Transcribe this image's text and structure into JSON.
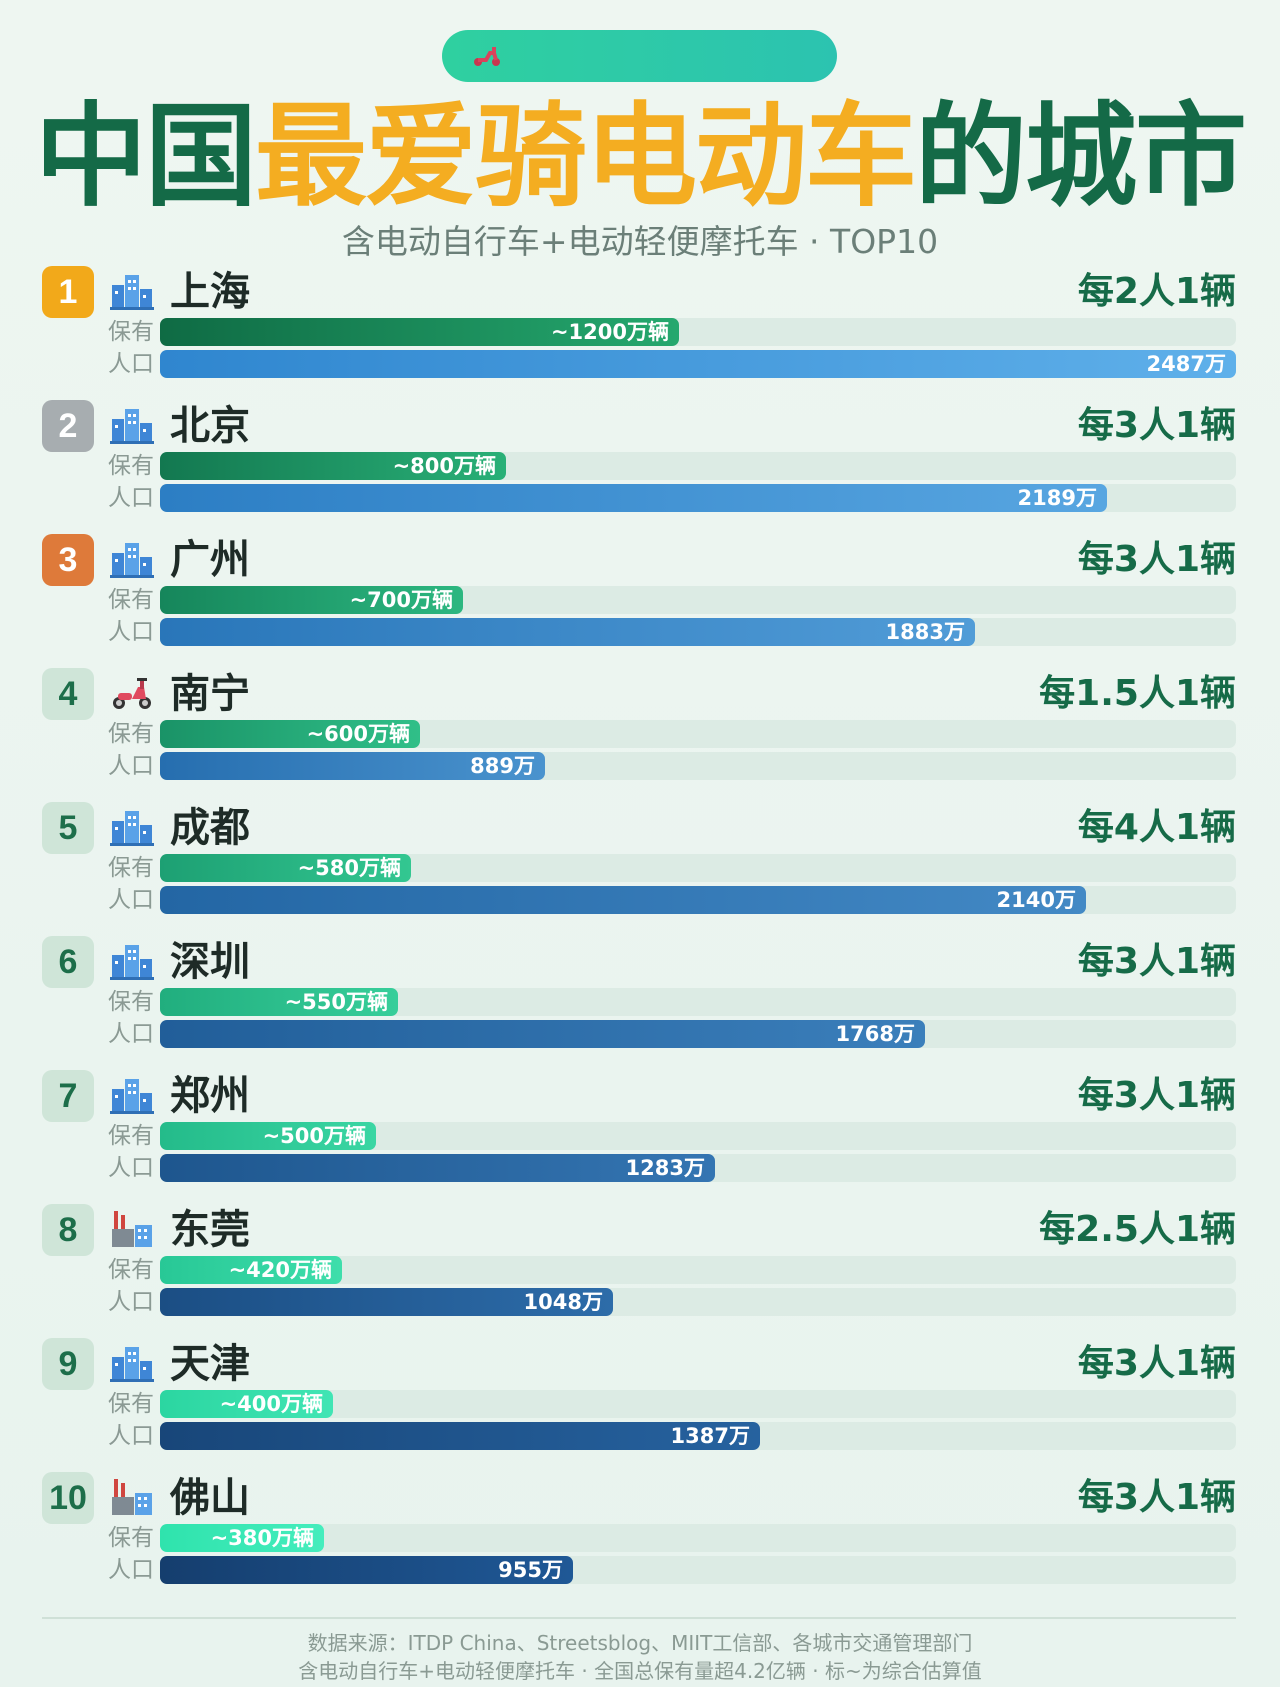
{
  "header": {
    "title_part1": "中国",
    "title_part2": "最爱骑电动车",
    "title_part3": "的城市",
    "subtitle": "含电动自行车+电动轻便摩托车 · TOP10"
  },
  "labels": {
    "own": "保有",
    "pop": "人口"
  },
  "footer": {
    "line1": "数据来源：ITDP China、Streetsblog、MIIT工信部、各城市交通管理部门",
    "line2": "含电动自行车+电动轻便摩托车 · 全国总保有量超4.2亿辆 · 标~为综合估算值"
  },
  "colors": {
    "rank1": "#f2a91a",
    "rank2": "#a7adb0",
    "rank3": "#de7a3a",
    "title_dark": "#146a47",
    "title_gold": "#f4ad21"
  },
  "chart_data": {
    "type": "bar",
    "max_value": 2487,
    "categories": [
      "上海",
      "北京",
      "广州",
      "南宁",
      "成都",
      "深圳",
      "郑州",
      "东莞",
      "天津",
      "佛山"
    ],
    "series": [
      {
        "name": "保有",
        "values": [
          1200,
          800,
          700,
          600,
          580,
          550,
          500,
          420,
          400,
          380
        ]
      },
      {
        "name": "人口",
        "values": [
          2487,
          2189,
          1883,
          889,
          2140,
          1768,
          1283,
          1048,
          1387,
          955
        ]
      }
    ],
    "rows": [
      {
        "rank": "1",
        "city": "上海",
        "icon": "city-buildings-icon",
        "ratio": "每2人1辆",
        "own": 1200,
        "own_label": "~1200万辆",
        "pop": 2487,
        "pop_label": "2487万"
      },
      {
        "rank": "2",
        "city": "北京",
        "icon": "city-buildings-icon",
        "ratio": "每3人1辆",
        "own": 800,
        "own_label": "~800万辆",
        "pop": 2189,
        "pop_label": "2189万"
      },
      {
        "rank": "3",
        "city": "广州",
        "icon": "city-buildings-icon",
        "ratio": "每3人1辆",
        "own": 700,
        "own_label": "~700万辆",
        "pop": 1883,
        "pop_label": "1883万"
      },
      {
        "rank": "4",
        "city": "南宁",
        "icon": "scooter-icon",
        "ratio": "每1.5人1辆",
        "own": 600,
        "own_label": "~600万辆",
        "pop": 889,
        "pop_label": "889万"
      },
      {
        "rank": "5",
        "city": "成都",
        "icon": "city-buildings-icon",
        "ratio": "每4人1辆",
        "own": 580,
        "own_label": "~580万辆",
        "pop": 2140,
        "pop_label": "2140万"
      },
      {
        "rank": "6",
        "city": "深圳",
        "icon": "city-buildings-icon",
        "ratio": "每3人1辆",
        "own": 550,
        "own_label": "~550万辆",
        "pop": 1768,
        "pop_label": "1768万"
      },
      {
        "rank": "7",
        "city": "郑州",
        "icon": "city-buildings-icon",
        "ratio": "每3人1辆",
        "own": 500,
        "own_label": "~500万辆",
        "pop": 1283,
        "pop_label": "1283万"
      },
      {
        "rank": "8",
        "city": "东莞",
        "icon": "factory-icon",
        "ratio": "每2.5人1辆",
        "own": 420,
        "own_label": "~420万辆",
        "pop": 1048,
        "pop_label": "1048万"
      },
      {
        "rank": "9",
        "city": "天津",
        "icon": "city-buildings-icon",
        "ratio": "每3人1辆",
        "own": 400,
        "own_label": "~400万辆",
        "pop": 1387,
        "pop_label": "1387万"
      },
      {
        "rank": "10",
        "city": "佛山",
        "icon": "factory-icon",
        "ratio": "每3人1辆",
        "own": 380,
        "own_label": "~380万辆",
        "pop": 955,
        "pop_label": "955万"
      }
    ]
  }
}
